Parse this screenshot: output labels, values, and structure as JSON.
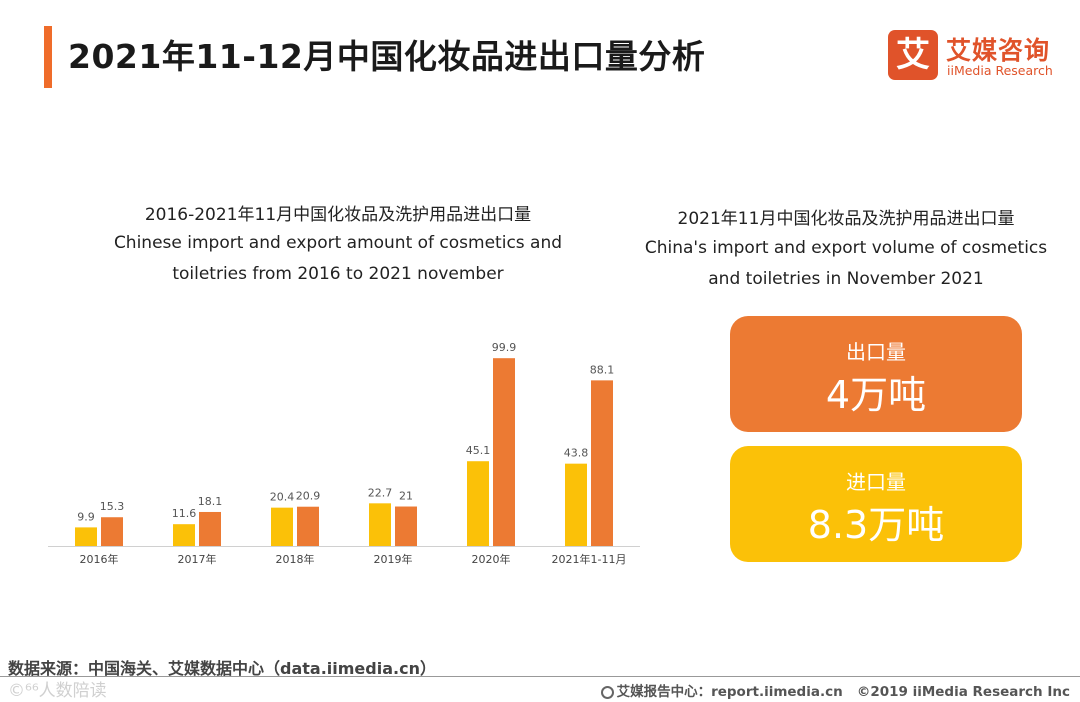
{
  "page": {
    "title": "2021年11-12月中国化妆品进出口量分析"
  },
  "logo": {
    "mark": "艾",
    "name_cn": "艾媒咨询",
    "name_en": "iiMedia Research"
  },
  "left_panel": {
    "heading_cn": "2016-2021年11月中国化妆品及洗护用品进出口量",
    "heading_en_line1": "Chinese import and export amount of cosmetics and",
    "heading_en_line2": "toiletries from 2016 to 2021 november"
  },
  "right_panel": {
    "heading_cn": "2021年11月中国化妆品及洗护用品进出口量",
    "heading_en_line1": "China's import and export volume of cosmetics",
    "heading_en_line2": "and toiletries in November 2021",
    "cards": [
      {
        "label": "出口量",
        "value": "4万吨",
        "color": "#ec7a33"
      },
      {
        "label": "进口量",
        "value": "8.3万吨",
        "color": "#fbc108"
      }
    ]
  },
  "chart_data": {
    "type": "bar",
    "title": "2016-2021年11月中国化妆品及洗护用品进出口量",
    "categories": [
      "2016年",
      "2017年",
      "2018年",
      "2019年",
      "2020年",
      "2021年1-11月"
    ],
    "series": [
      {
        "name": "series_yellow",
        "color": "#fbc108",
        "values": [
          9.9,
          11.6,
          20.4,
          22.7,
          45.1,
          43.8
        ],
        "labels": [
          "9.9",
          "11.6",
          "20.4",
          "22.7",
          "45.1",
          "43.8"
        ]
      },
      {
        "name": "series_orange",
        "color": "#ec7a33",
        "values": [
          15.3,
          18.1,
          20.9,
          21,
          99.9,
          88.1
        ],
        "labels": [
          "15.3",
          "18.1",
          "20.9",
          "21",
          "99.9",
          "88.1"
        ]
      }
    ],
    "ylim": [
      0,
      100
    ],
    "xlabel": "",
    "ylabel": "",
    "grid": false,
    "legend": "none"
  },
  "source": "数据来源：中国海关、艾媒数据中心（data.iimedia.cn）",
  "watermark": "©⁶⁶人数陪读",
  "footer": {
    "report": "艾媒报告中心：report.iimedia.cn",
    "copyright": "©2019  iiMedia Research  Inc"
  }
}
